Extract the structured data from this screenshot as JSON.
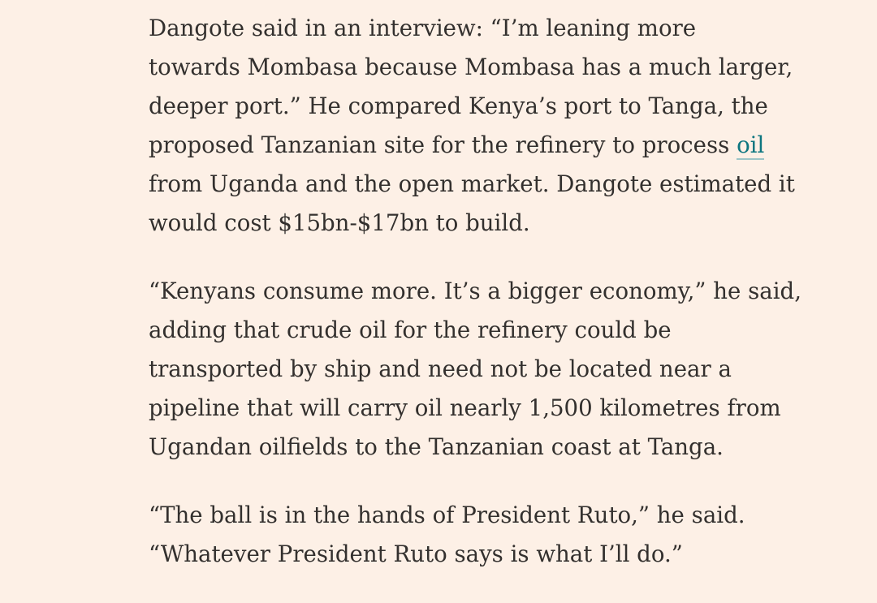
{
  "article": {
    "paragraphs": [
      {
        "lines": [
          "Dangote said in an interview: “I’m leaning more",
          "towards Mombasa because Mombasa has a much larger,",
          "deeper port.” He compared Kenya’s port to Tanga, the"
        ],
        "line4_before_link": "proposed Tanzanian site for the refinery to process ",
        "link_text": "oil",
        "lines_after": [
          "from Uganda and the open market. Dangote estimated it",
          "would cost $15bn-$17bn to build."
        ]
      },
      {
        "lines": [
          "“Kenyans consume more. It’s a bigger economy,” he said,",
          "adding that crude oil for the refinery could be",
          "transported by ship and need not be located near a",
          "pipeline that will carry oil nearly 1,500 kilometres from",
          "Ugandan oilfields to the Tanzanian coast at Tanga."
        ]
      },
      {
        "lines": [
          "“The ball is in the hands of President Ruto,” he said.",
          "“Whatever President Ruto says is what I’ll do.”"
        ]
      }
    ]
  },
  "colors": {
    "background": "#FDF0E6",
    "text": "#33302E",
    "link": "#0D7680"
  }
}
